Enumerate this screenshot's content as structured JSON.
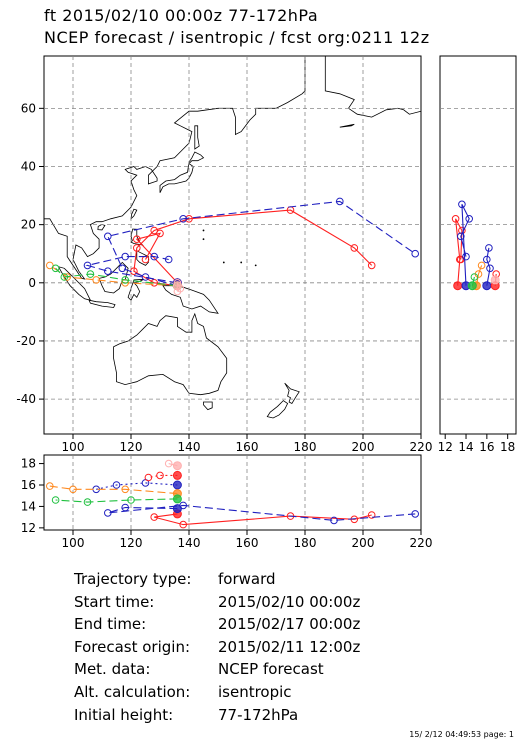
{
  "header": {
    "line1": "ft 2015/02/10 00:00z  77-172hPa",
    "line2": "NCEP forecast / isentropic / fcst org:0211 12z"
  },
  "info": [
    {
      "label": "Trajectory type:",
      "value": "forward"
    },
    {
      "label": "Start time:",
      "value": "2015/02/10 00:00z"
    },
    {
      "label": "End time:",
      "value": "2015/02/17 00:00z"
    },
    {
      "label": "Forecast origin:",
      "value": "2015/02/11 12:00z"
    },
    {
      "label": "Met. data:",
      "value": "NCEP forecast"
    },
    {
      "label": "Alt. calculation:",
      "value": "isentropic"
    },
    {
      "label": "Initial height:",
      "value": "77-172hPa"
    }
  ],
  "footer": {
    "stamp": "15/ 2/12 04:49:53 page: 1"
  },
  "colors": {
    "red": "#ff2020",
    "blue": "#2020c0",
    "orange": "#ff8a20",
    "green": "#20c040",
    "pink": "#ffb0b0",
    "grid": "#888888"
  },
  "chart_data": [
    {
      "type": "scatter",
      "panel": "map",
      "x_ticks": [
        100,
        120,
        140,
        160,
        180,
        200,
        220
      ],
      "y_ticks": [
        60,
        40,
        20,
        0,
        -20,
        -40
      ],
      "xlim": [
        90,
        220
      ],
      "ylim": [
        -52,
        78
      ],
      "grid": true,
      "series": [
        {
          "color": "red",
          "style": "solid",
          "points": [
            [
              136,
              -1
            ],
            [
              128,
              0
            ],
            [
              121,
              4
            ],
            [
              122,
              12
            ],
            [
              128,
              18
            ],
            [
              140,
              22
            ],
            [
              175,
              25
            ],
            [
              197,
              12
            ],
            [
              203,
              6
            ]
          ]
        },
        {
          "color": "red",
          "style": "solid",
          "points": [
            [
              136,
              0
            ],
            [
              122,
              15
            ],
            [
              130,
              17
            ],
            [
              125,
              8
            ]
          ]
        },
        {
          "color": "blue",
          "style": "dashed",
          "points": [
            [
              136,
              -1
            ],
            [
              125,
              2
            ],
            [
              117,
              5
            ],
            [
              112,
              16
            ],
            [
              138,
              22
            ],
            [
              192,
              28
            ],
            [
              218,
              10
            ]
          ]
        },
        {
          "color": "blue",
          "style": "dashed",
          "points": [
            [
              136,
              0
            ],
            [
              112,
              4
            ],
            [
              105,
              6
            ],
            [
              118,
              9
            ],
            [
              128,
              9
            ],
            [
              133,
              8
            ]
          ]
        },
        {
          "color": "orange",
          "style": "dashed",
          "points": [
            [
              136,
              -1
            ],
            [
              118,
              0
            ],
            [
              108,
              1
            ],
            [
              98,
              2
            ],
            [
              92,
              6
            ]
          ]
        },
        {
          "color": "green",
          "style": "dashed",
          "points": [
            [
              136,
              -1
            ],
            [
              118,
              1
            ],
            [
              106,
              3
            ],
            [
              97,
              2
            ],
            [
              94,
              5
            ]
          ]
        },
        {
          "color": "pink",
          "style": "solid",
          "points": [
            [
              136,
              -1
            ],
            [
              136,
              0
            ],
            [
              137,
              -2
            ],
            [
              136,
              -3
            ]
          ]
        }
      ]
    },
    {
      "type": "scatter",
      "panel": "right-side",
      "x_ticks": [
        12,
        14,
        16,
        18
      ],
      "xlim": [
        11.5,
        18.8
      ],
      "ylim": [
        -52,
        78
      ],
      "series": [
        {
          "color": "red",
          "points": [
            [
              13.2,
              -1
            ],
            [
              13.4,
              8
            ],
            [
              13.0,
              22
            ],
            [
              13.6,
              18
            ],
            [
              13.5,
              8
            ]
          ]
        },
        {
          "color": "blue",
          "points": [
            [
              14.0,
              -1
            ],
            [
              13.6,
              27
            ],
            [
              14.3,
              22
            ],
            [
              13.5,
              16
            ],
            [
              14.0,
              9
            ]
          ]
        },
        {
          "color": "orange",
          "points": [
            [
              15.0,
              -1
            ],
            [
              15.2,
              3
            ],
            [
              15.5,
              6
            ]
          ]
        },
        {
          "color": "green",
          "points": [
            [
              14.6,
              -1
            ],
            [
              14.8,
              2
            ]
          ]
        },
        {
          "color": "blue",
          "points": [
            [
              16.0,
              -1
            ],
            [
              16.3,
              5
            ],
            [
              16.0,
              8
            ],
            [
              16.2,
              12
            ]
          ]
        },
        {
          "color": "red",
          "points": [
            [
              16.8,
              -1
            ],
            [
              16.9,
              3
            ]
          ]
        },
        {
          "color": "pink",
          "points": [
            [
              16.8,
              1
            ]
          ]
        }
      ]
    },
    {
      "type": "scatter",
      "panel": "bottom",
      "x_ticks": [
        100,
        120,
        140,
        160,
        180,
        200,
        220
      ],
      "y_ticks": [
        18,
        16,
        14,
        12
      ],
      "xlim": [
        90,
        220
      ],
      "ylim": [
        11.8,
        18.8
      ],
      "series": [
        {
          "color": "red",
          "style": "solid",
          "points": [
            [
              136,
              13.3
            ],
            [
              128,
              13.0
            ],
            [
              138,
              12.3
            ],
            [
              175,
              13.1
            ],
            [
              197,
              12.8
            ],
            [
              203,
              13.2
            ]
          ]
        },
        {
          "color": "blue",
          "style": "dashed",
          "points": [
            [
              136,
              13.8
            ],
            [
              118,
              13.9
            ],
            [
              112,
              13.4
            ],
            [
              138,
              14.1
            ],
            [
              190,
              12.7
            ],
            [
              218,
              13.3
            ]
          ]
        },
        {
          "color": "blue",
          "style": "dotted",
          "points": [
            [
              136,
              16.0
            ],
            [
              125,
              16.2
            ],
            [
              115,
              16.0
            ],
            [
              108,
              15.6
            ]
          ]
        },
        {
          "color": "orange",
          "style": "dashed",
          "points": [
            [
              136,
              15.2
            ],
            [
              118,
              15.6
            ],
            [
              100,
              15.6
            ],
            [
              92,
              15.9
            ]
          ]
        },
        {
          "color": "green",
          "style": "dashed",
          "points": [
            [
              136,
              14.7
            ],
            [
              120,
              14.6
            ],
            [
              105,
              14.4
            ],
            [
              94,
              14.6
            ]
          ]
        },
        {
          "color": "red",
          "style": "dotted",
          "points": [
            [
              136,
              16.9
            ],
            [
              130,
              16.9
            ],
            [
              126,
              16.7
            ]
          ]
        },
        {
          "color": "pink",
          "style": "solid",
          "points": [
            [
              136,
              17.8
            ],
            [
              133,
              18.0
            ]
          ]
        }
      ]
    }
  ]
}
